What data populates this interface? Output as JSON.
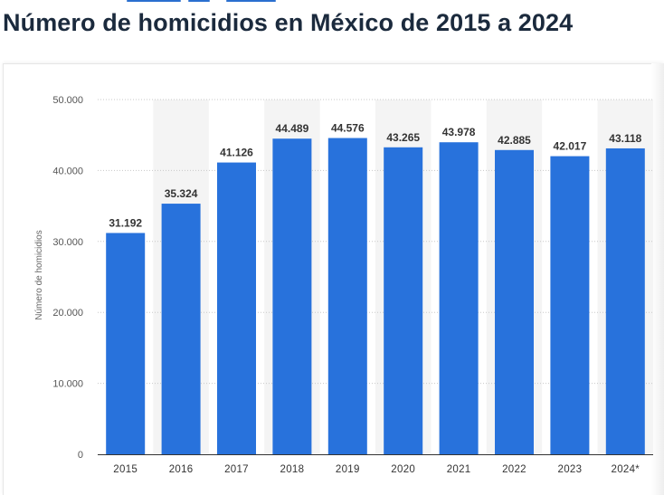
{
  "page": {
    "title": "Número de homicidios en México de 2015 a 2024"
  },
  "colors": {
    "bar": "#2872dc",
    "band": "#f4f4f4",
    "grid": "#c8c8c8",
    "axis": "#333333"
  },
  "chart_data": {
    "type": "bar",
    "title": "Número de homicidios en México de 2015 a 2024",
    "xlabel": "",
    "ylabel": "Número de homicidios",
    "categories": [
      "2015",
      "2016",
      "2017",
      "2018",
      "2019",
      "2020",
      "2021",
      "2022",
      "2023",
      "2024*"
    ],
    "values": [
      31192,
      35324,
      41126,
      44489,
      44576,
      43265,
      43978,
      42885,
      42017,
      43118
    ],
    "value_labels": [
      "31.192",
      "35.324",
      "41.126",
      "44.489",
      "44.576",
      "43.265",
      "43.978",
      "42.885",
      "42.017",
      "43.118"
    ],
    "ylim": [
      0,
      50000
    ],
    "yticks": [
      0,
      10000,
      20000,
      30000,
      40000,
      50000
    ],
    "ytick_labels": [
      "0",
      "10.000",
      "20.000",
      "30.000",
      "40.000",
      "50.000"
    ],
    "grid": true,
    "legend": "none"
  }
}
